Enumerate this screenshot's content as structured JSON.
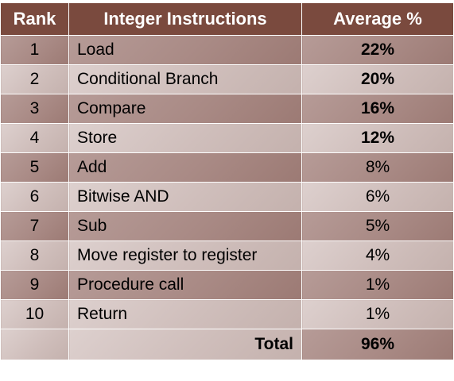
{
  "header": {
    "rank": "Rank",
    "instructions": "Integer Instructions",
    "average": "Average %"
  },
  "rows": [
    {
      "rank": "1",
      "instruction": "Load",
      "average": "22%",
      "bold": true
    },
    {
      "rank": "2",
      "instruction": "Conditional Branch",
      "average": "20%",
      "bold": true
    },
    {
      "rank": "3",
      "instruction": "Compare",
      "average": "16%",
      "bold": true
    },
    {
      "rank": "4",
      "instruction": "Store",
      "average": "12%",
      "bold": true
    },
    {
      "rank": "5",
      "instruction": "Add",
      "average": "8%",
      "bold": false
    },
    {
      "rank": "6",
      "instruction": "Bitwise AND",
      "average": "6%",
      "bold": false
    },
    {
      "rank": "7",
      "instruction": "Sub",
      "average": "5%",
      "bold": false
    },
    {
      "rank": "8",
      "instruction": "Move register to register",
      "average": "4%",
      "bold": false
    },
    {
      "rank": "9",
      "instruction": "Procedure call",
      "average": "1%",
      "bold": false
    },
    {
      "rank": "10",
      "instruction": "Return",
      "average": "1%",
      "bold": false
    }
  ],
  "total": {
    "label": "Total",
    "value": "96%"
  },
  "colors": {
    "header_bg": "#7a4a3e",
    "header_text": "#ffffff",
    "row_dark": "#a98a85",
    "row_light": "#cfbebb"
  }
}
